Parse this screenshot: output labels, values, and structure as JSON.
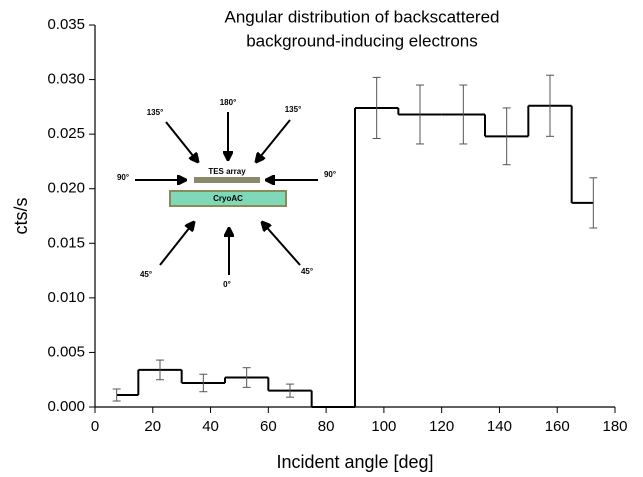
{
  "chart_data": {
    "type": "step",
    "title": [
      "Angular distribution of backscattered",
      "background-inducing electrons"
    ],
    "xlabel": "Incident angle [deg]",
    "ylabel": "cts/s",
    "x": [
      7.5,
      22.5,
      37.5,
      52.5,
      67.5,
      82.5,
      97.5,
      112.5,
      127.5,
      142.5,
      157.5,
      172.5
    ],
    "values": [
      0.0011,
      0.0034,
      0.0022,
      0.0027,
      0.0015,
      0,
      0.0274,
      0.0268,
      0.0268,
      0.0248,
      0.0276,
      0.0187
    ],
    "errors": [
      0.00055,
      0.0009,
      0.0008,
      0.0009,
      0.0006,
      null,
      0.0028,
      0.0027,
      0.0027,
      0.0026,
      0.0028,
      0.0023
    ],
    "color": "#000000",
    "xlim": [
      0,
      180
    ],
    "xticks": [
      0,
      20,
      40,
      60,
      80,
      100,
      120,
      140,
      160,
      180
    ],
    "ylim": [
      0,
      0.035
    ],
    "yticks": [
      {
        "value": 0,
        "label": "0.000"
      },
      {
        "value": 0.005,
        "label": "0.005"
      },
      {
        "value": 0.01,
        "label": "0.010"
      },
      {
        "value": 0.015,
        "label": "0.015"
      },
      {
        "value": 0.02,
        "label": "0.020"
      },
      {
        "value": 0.025,
        "label": "0.025"
      },
      {
        "value": 0.03,
        "label": "0.030"
      },
      {
        "value": 0.035,
        "label": "0.035"
      }
    ],
    "inset": {
      "angles": [
        "180°",
        "135°",
        "135°",
        "90°",
        "90°",
        "45°",
        "45°",
        "0°"
      ],
      "tes": "TES array",
      "cryoac": "CryoAC"
    }
  }
}
